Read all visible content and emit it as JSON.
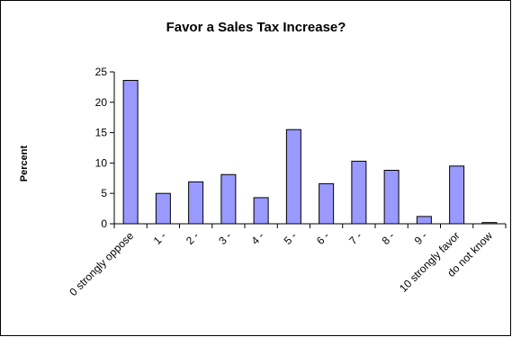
{
  "chart_data": {
    "type": "bar",
    "title": "Favor a Sales Tax Increase?",
    "ylabel": "Percent",
    "xlabel": "",
    "categories": [
      "0 strongly oppose",
      "1 -",
      "2 -",
      "3 -",
      "4 -",
      "5 -",
      "6 -",
      "7 -",
      "8 -",
      "9 -",
      "10 strongly favor",
      "do not know"
    ],
    "values": [
      23.6,
      5.0,
      6.9,
      8.1,
      4.3,
      15.5,
      6.6,
      10.3,
      8.8,
      1.2,
      9.5,
      0.2
    ],
    "ylim": [
      0,
      25
    ],
    "yticks": [
      0,
      5,
      10,
      15,
      20,
      25
    ],
    "grid": false,
    "legend": "none",
    "colors": {
      "bar_fill": "#9999FF",
      "bar_stroke": "#000000",
      "axis": "#000000"
    }
  }
}
